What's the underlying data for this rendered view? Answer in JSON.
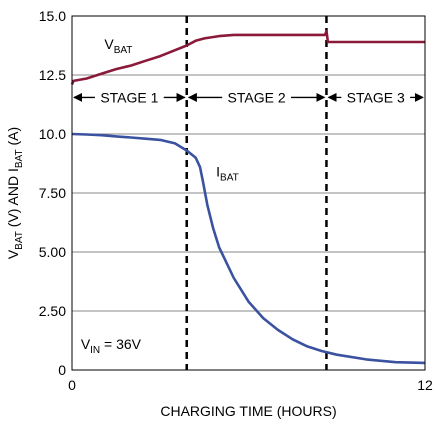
{
  "chart_data": {
    "type": "line",
    "xlabel": "CHARGING TIME (HOURS)",
    "ylabel": {
      "parts": [
        {
          "text": "V",
          "sub": false
        },
        {
          "text": "BAT",
          "sub": true
        },
        {
          "text": " (V) AND I",
          "sub": false
        },
        {
          "text": "BAT",
          "sub": true
        },
        {
          "text": " (A)",
          "sub": false
        }
      ]
    },
    "xlim": [
      0,
      12
    ],
    "ylim": [
      0,
      15
    ],
    "x_ticks": [
      {
        "value": 0,
        "label": "0"
      },
      {
        "value": 12,
        "label": "12"
      }
    ],
    "y_ticks": [
      {
        "value": 0,
        "label": "0"
      },
      {
        "value": 2.5,
        "label": "2.50"
      },
      {
        "value": 5,
        "label": "5.00"
      },
      {
        "value": 7.5,
        "label": "7.50"
      },
      {
        "value": 10,
        "label": "10.0"
      },
      {
        "value": 12.5,
        "label": "12.5"
      },
      {
        "value": 15,
        "label": "15.0"
      }
    ],
    "grid": {
      "horizontal": true,
      "vertical": false
    },
    "series": [
      {
        "label_main": "V",
        "label_sub": "BAT",
        "color": "#8b1a3a",
        "points": [
          [
            0,
            12.1
          ],
          [
            0.05,
            12.25
          ],
          [
            0.5,
            12.35
          ],
          [
            1.0,
            12.55
          ],
          [
            1.5,
            12.75
          ],
          [
            2.0,
            12.9
          ],
          [
            2.5,
            13.1
          ],
          [
            3.0,
            13.3
          ],
          [
            3.5,
            13.55
          ],
          [
            3.9,
            13.75
          ],
          [
            4.2,
            13.95
          ],
          [
            4.5,
            14.05
          ],
          [
            5.0,
            14.15
          ],
          [
            5.5,
            14.2
          ],
          [
            6.0,
            14.2
          ],
          [
            7.0,
            14.2
          ],
          [
            8.0,
            14.2
          ],
          [
            8.6,
            14.2
          ],
          [
            8.65,
            14.35
          ],
          [
            8.7,
            13.9
          ],
          [
            9.0,
            13.9
          ],
          [
            10.0,
            13.9
          ],
          [
            11.0,
            13.9
          ],
          [
            12.0,
            13.9
          ]
        ],
        "label_at": [
          1.1,
          13.6
        ]
      },
      {
        "label_main": "I",
        "label_sub": "BAT",
        "color": "#3a52a0",
        "points": [
          [
            0,
            10.0
          ],
          [
            0.5,
            9.98
          ],
          [
            1.0,
            9.95
          ],
          [
            1.5,
            9.9
          ],
          [
            2.0,
            9.85
          ],
          [
            2.5,
            9.8
          ],
          [
            3.0,
            9.75
          ],
          [
            3.5,
            9.6
          ],
          [
            3.9,
            9.3
          ],
          [
            4.2,
            9.0
          ],
          [
            4.35,
            8.6
          ],
          [
            4.45,
            8.0
          ],
          [
            4.6,
            7.0
          ],
          [
            4.8,
            6.0
          ],
          [
            5.0,
            5.2
          ],
          [
            5.5,
            3.9
          ],
          [
            6.0,
            2.9
          ],
          [
            6.5,
            2.2
          ],
          [
            7.0,
            1.7
          ],
          [
            7.5,
            1.3
          ],
          [
            8.0,
            1.0
          ],
          [
            8.5,
            0.8
          ],
          [
            9.0,
            0.65
          ],
          [
            10.0,
            0.45
          ],
          [
            11.0,
            0.33
          ],
          [
            12.0,
            0.3
          ]
        ],
        "label_at": [
          4.9,
          8.2
        ]
      }
    ],
    "stage_dividers": [
      3.9,
      8.65
    ],
    "stages": [
      {
        "label": "STAGE 1",
        "x_from": 0,
        "x_to": 3.9
      },
      {
        "label": "STAGE 2",
        "x_from": 3.9,
        "x_to": 8.65
      },
      {
        "label": "STAGE 3",
        "x_from": 8.65,
        "x_to": 12
      }
    ],
    "stage_arrow_y": 11.55,
    "annotation": {
      "main": "V",
      "sub": "IN",
      "rest": " = 36V",
      "at": [
        0.3,
        0.9
      ]
    }
  }
}
